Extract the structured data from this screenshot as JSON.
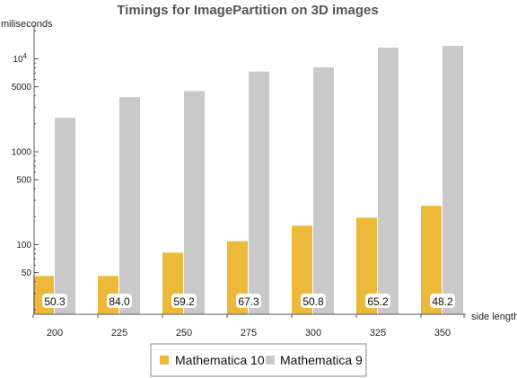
{
  "chart_data": {
    "type": "bar",
    "title": "Timings for ImagePartition on 3D images",
    "ylabel": "miliseconds",
    "xlabel": "side length",
    "yscale": "log",
    "ylim": [
      20,
      20000
    ],
    "grid": false,
    "legend_position": "bottom",
    "categories": [
      "200",
      "225",
      "250",
      "275",
      "300",
      "325",
      "350"
    ],
    "y_ticks": [
      {
        "value": 10000,
        "label": "10",
        "sup": "4"
      },
      {
        "value": 5000,
        "label": "5000"
      },
      {
        "value": 1000,
        "label": "1000"
      },
      {
        "value": 500,
        "label": "500"
      },
      {
        "value": 100,
        "label": "100"
      },
      {
        "value": 50,
        "label": "50"
      }
    ],
    "series": [
      {
        "name": "Mathematica 10",
        "color": "#EDB93B",
        "values": [
          46,
          46,
          82,
          109,
          160,
          195,
          262
        ]
      },
      {
        "name": "Mathematica 9",
        "color": "#C9C9C9",
        "values": [
          2320,
          3870,
          4500,
          7300,
          8100,
          13200,
          13800
        ]
      }
    ],
    "data_labels": [
      "50.3",
      "84.0",
      "59.2",
      "67.3",
      "50.8",
      "65.2",
      "48.2"
    ]
  }
}
